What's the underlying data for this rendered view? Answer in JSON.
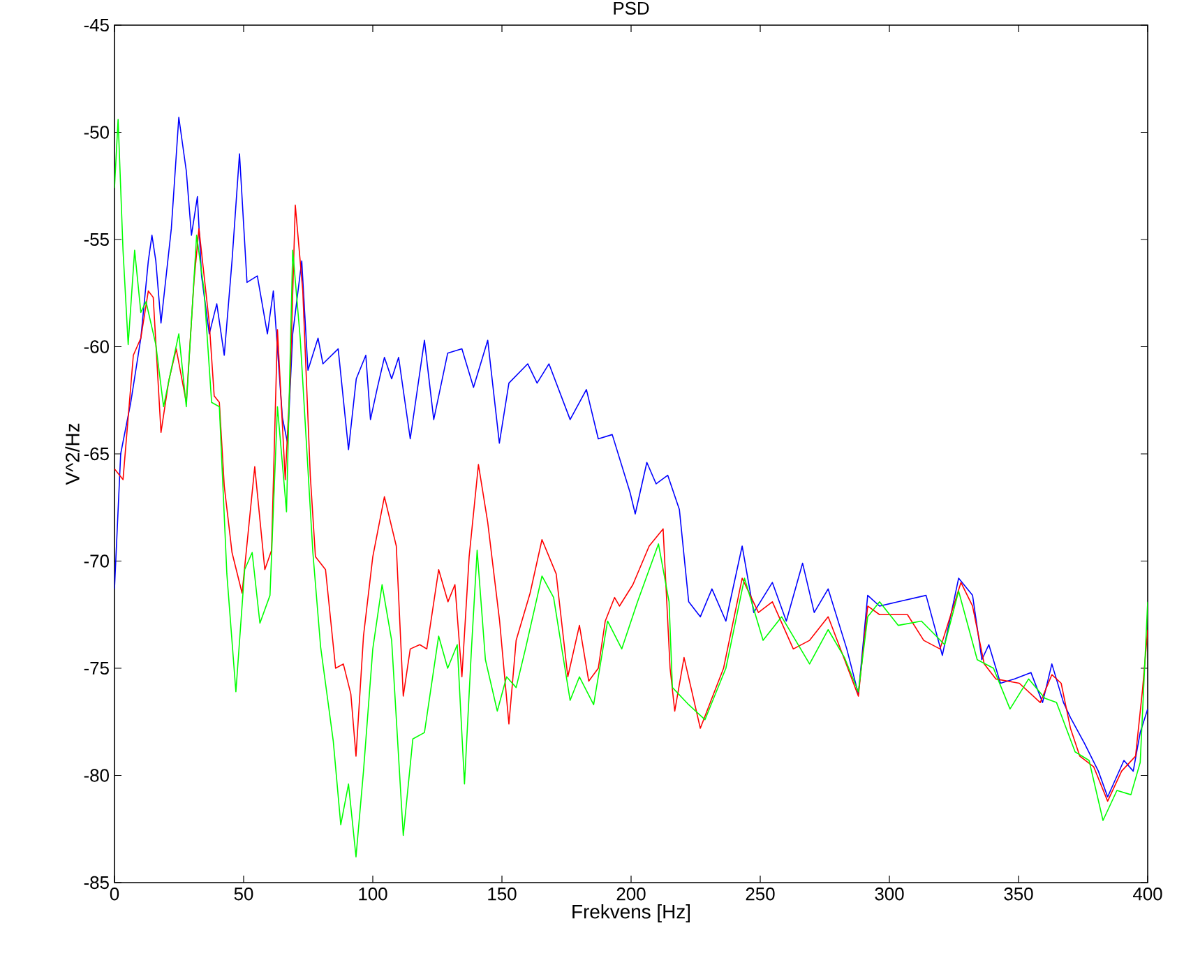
{
  "chart_data": {
    "type": "line",
    "title": "PSD",
    "xlabel": "Frekvens [Hz]",
    "ylabel": "V^2/Hz",
    "xlim": [
      0,
      400
    ],
    "ylim": [
      -85,
      -45
    ],
    "xticks": [
      0,
      50,
      100,
      150,
      200,
      250,
      300,
      350,
      400
    ],
    "yticks": [
      -85,
      -80,
      -75,
      -70,
      -65,
      -60,
      -55,
      -50,
      -45
    ],
    "marker": "none",
    "line_style": "solid",
    "series": [
      {
        "color": "#0000ff",
        "x": [
          0,
          2.4,
          6.3,
          10.2,
          13.1,
          14.5,
          16,
          18,
          22,
          24.9,
          27.8,
          29.8,
          32.1,
          33.7,
          36.7,
          39.6,
          42.5,
          45.5,
          48.4,
          51.3,
          55.3,
          59.2,
          61.5,
          65,
          67,
          69,
          72.5,
          74.9,
          78.8,
          80.7,
          86.6,
          90.6,
          93.6,
          97.3,
          99.1,
          101.8,
          104.5,
          107.3,
          110,
          114.5,
          120,
          123.6,
          129,
          134.5,
          139,
          144.5,
          149,
          152.7,
          160,
          163.6,
          168.2,
          176.4,
          182.7,
          187.3,
          192.7,
          199.6,
          201.6,
          206.1,
          209.7,
          214.2,
          218.7,
          222.3,
          226.8,
          231.3,
          236.7,
          243,
          247.5,
          254.7,
          260.1,
          266.4,
          270.9,
          276.3,
          283.5,
          288,
          291.6,
          296.2,
          303.4,
          314.2,
          320.5,
          326.8,
          332.2,
          335.8,
          338.5,
          343,
          348.5,
          354.8,
          359.3,
          362.9,
          367.4,
          370.1,
          375.5,
          380.9,
          384.5,
          390.8,
          394.4,
          397.1,
          400
        ],
        "values": [
          -71.3,
          -65,
          -62.6,
          -59.6,
          -56,
          -54.8,
          -56,
          -58.9,
          -54.5,
          -49.3,
          -51.8,
          -54.8,
          -53,
          -56.7,
          -59.4,
          -58,
          -60.4,
          -56,
          -51,
          -57,
          -56.7,
          -59.4,
          -57.4,
          -63.3,
          -64.5,
          -59.4,
          -56,
          -61.1,
          -59.6,
          -60.8,
          -60.1,
          -64.8,
          -61.5,
          -60.4,
          -63.4,
          -61.9,
          -60.5,
          -61.5,
          -60.5,
          -64.3,
          -59.7,
          -63.4,
          -60.3,
          -60.1,
          -61.9,
          -59.7,
          -64.5,
          -61.7,
          -60.8,
          -61.7,
          -60.8,
          -63.4,
          -62,
          -64.3,
          -64.1,
          -66.8,
          -67.8,
          -65.4,
          -66.4,
          -66,
          -67.6,
          -71.9,
          -72.6,
          -71.3,
          -72.8,
          -69.3,
          -72.4,
          -71,
          -72.8,
          -70.1,
          -72.4,
          -71.3,
          -74.1,
          -76.2,
          -71.6,
          -72.1,
          -71.9,
          -71.6,
          -74.4,
          -70.8,
          -71.6,
          -74.6,
          -73.9,
          -75.7,
          -75.5,
          -75.2,
          -76.6,
          -74.8,
          -76.6,
          -77.3,
          -78.5,
          -79.8,
          -81,
          -79.3,
          -79.8,
          -78,
          -76.9
        ]
      },
      {
        "color": "#ff0000",
        "x": [
          0,
          3.3,
          7.3,
          10.2,
          13.1,
          15,
          18,
          21,
          23.9,
          27.8,
          30.8,
          32.7,
          36.7,
          38.6,
          40.6,
          42.5,
          45.5,
          49.4,
          54.3,
          58.2,
          60.8,
          63.1,
          66.1,
          68,
          70,
          72.9,
          75.8,
          77.8,
          81.7,
          85.6,
          88.6,
          91.5,
          93.5,
          96.4,
          100,
          104.5,
          109.1,
          111.8,
          114.5,
          118.2,
          120.9,
          125.5,
          129.1,
          131.8,
          134.5,
          137.3,
          140.9,
          144.5,
          149.1,
          152.7,
          155.5,
          160.9,
          165.5,
          171,
          175.5,
          180,
          183.6,
          187.3,
          190,
          193.6,
          195.5,
          200.7,
          207,
          212.4,
          215.1,
          216.9,
          220.5,
          226.8,
          235.8,
          243,
          249.3,
          254.7,
          262.8,
          269.1,
          276.3,
          281.7,
          288,
          291.6,
          296.2,
          307,
          313.3,
          319.6,
          327.7,
          332.2,
          336.7,
          341.2,
          350.3,
          358.4,
          362.9,
          366.5,
          370.1,
          373.7,
          379.1,
          384.5,
          389.9,
          395.3,
          398,
          400
        ],
        "values": [
          -65.7,
          -66.2,
          -60.4,
          -59.6,
          -57.4,
          -57.7,
          -64,
          -61.6,
          -60.1,
          -62.6,
          -56.9,
          -54.5,
          -58.9,
          -62.3,
          -62.6,
          -66.5,
          -69.6,
          -71.5,
          -65.6,
          -70.4,
          -69.5,
          -59.2,
          -66.2,
          -61.6,
          -53.4,
          -57.4,
          -66,
          -69.8,
          -70.4,
          -75,
          -74.8,
          -76.2,
          -79.1,
          -73.5,
          -69.8,
          -67,
          -69.3,
          -76.3,
          -74.1,
          -73.9,
          -74.1,
          -70.4,
          -71.9,
          -71.1,
          -75.4,
          -69.8,
          -65.5,
          -68.2,
          -72.8,
          -77.6,
          -73.7,
          -71.5,
          -69,
          -70.6,
          -75.4,
          -73,
          -75.6,
          -75,
          -72.8,
          -71.7,
          -72.1,
          -71.1,
          -69.3,
          -68.5,
          -75,
          -77,
          -74.5,
          -77.8,
          -75,
          -70.8,
          -72.4,
          -71.9,
          -74.1,
          -73.7,
          -72.6,
          -74.3,
          -76.3,
          -72.1,
          -72.5,
          -72.5,
          -73.7,
          -74.1,
          -71,
          -72.1,
          -74.8,
          -75.5,
          -75.7,
          -76.6,
          -75.3,
          -75.7,
          -77.8,
          -79.1,
          -79.6,
          -81.2,
          -79.8,
          -79.1,
          -76,
          -73.2
        ]
      },
      {
        "color": "#00ff00",
        "x": [
          0,
          1.4,
          3.3,
          5.3,
          7.8,
          10.2,
          12.2,
          16,
          19,
          21.9,
          24.9,
          27.8,
          31.8,
          34.7,
          37.6,
          40.6,
          43.5,
          47,
          50.4,
          53.3,
          56.3,
          60.2,
          63.1,
          66.6,
          69,
          71.9,
          76.8,
          79.8,
          84.7,
          87.6,
          90.6,
          93.5,
          96.4,
          100,
          103.6,
          107.3,
          111.8,
          115.5,
          120,
          125.5,
          129,
          132.7,
          135.5,
          138.2,
          140.4,
          143.6,
          148.2,
          151.8,
          155.5,
          159.1,
          165.5,
          170,
          176.4,
          180,
          185.5,
          190.9,
          196.4,
          202.5,
          210.6,
          214.7,
          216,
          222.3,
          228.6,
          236.7,
          243.9,
          251.1,
          258.3,
          269.1,
          276.3,
          282.6,
          288,
          291.6,
          296.2,
          303.4,
          312.4,
          321.4,
          326.8,
          334,
          340.3,
          346.7,
          353.9,
          360.2,
          364.7,
          371.9,
          377.3,
          382.7,
          388.1,
          393.5,
          397.1,
          400
        ],
        "values": [
          -52.6,
          -49.4,
          -55.5,
          -59.9,
          -55.5,
          -58.4,
          -57.9,
          -59.9,
          -62.8,
          -61.1,
          -59.4,
          -62.8,
          -54.8,
          -57.4,
          -62.6,
          -62.8,
          -70.6,
          -76.1,
          -70.4,
          -69.6,
          -72.9,
          -71.6,
          -62.8,
          -67.7,
          -55.5,
          -59.6,
          -69.6,
          -74,
          -78.4,
          -82.3,
          -80.4,
          -83.8,
          -79.8,
          -74.1,
          -71.1,
          -73.7,
          -82.8,
          -78.3,
          -78,
          -73.5,
          -75,
          -73.9,
          -80.4,
          -74.1,
          -69.5,
          -74.6,
          -77,
          -75.4,
          -75.9,
          -74.1,
          -70.7,
          -71.7,
          -76.5,
          -75.4,
          -76.7,
          -72.8,
          -74.1,
          -71.9,
          -69.2,
          -71.9,
          -75.9,
          -76.7,
          -77.4,
          -75,
          -70.8,
          -73.7,
          -72.6,
          -74.8,
          -73.2,
          -74.5,
          -76.1,
          -72.6,
          -71.9,
          -73,
          -72.8,
          -73.9,
          -71.4,
          -74.6,
          -75,
          -76.9,
          -75.5,
          -76.4,
          -76.6,
          -78.9,
          -79.3,
          -82.1,
          -80.7,
          -80.9,
          -79.4,
          -71.9
        ]
      }
    ]
  }
}
